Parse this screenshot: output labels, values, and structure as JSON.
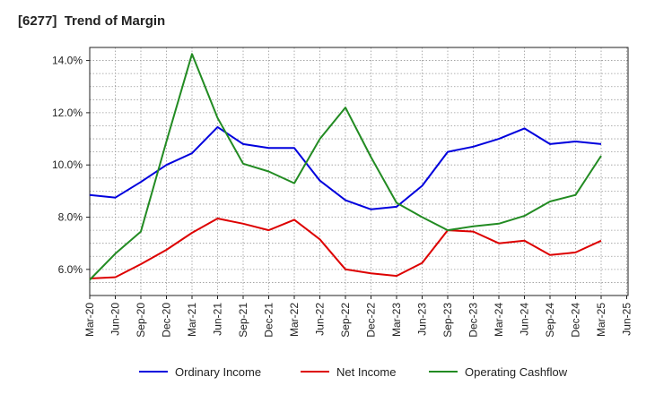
{
  "chart_data": {
    "type": "line",
    "title": "[6277]  Trend of Margin",
    "xlabel": "",
    "ylabel": "",
    "x_ticks": [
      "Mar-20",
      "Jun-20",
      "Sep-20",
      "Dec-20",
      "Mar-21",
      "Jun-21",
      "Sep-21",
      "Dec-21",
      "Mar-22",
      "Jun-22",
      "Sep-22",
      "Dec-22",
      "Mar-23",
      "Jun-23",
      "Sep-23",
      "Dec-23",
      "Mar-24",
      "Jun-24",
      "Sep-24",
      "Dec-24",
      "Mar-25",
      "Jun-25"
    ],
    "y_ticks": [
      "6.0%",
      "8.0%",
      "10.0%",
      "12.0%",
      "14.0%"
    ],
    "ylim": [
      5.0,
      14.5
    ],
    "grid": true,
    "legend_position": "bottom",
    "series": [
      {
        "name": "Ordinary Income",
        "color": "#0000dd",
        "x": [
          "Mar-20",
          "Jun-20",
          "Sep-20",
          "Dec-20",
          "Mar-21",
          "Jun-21",
          "Sep-21",
          "Dec-21",
          "Mar-22",
          "Jun-22",
          "Sep-22",
          "Dec-22",
          "Mar-23",
          "Jun-23",
          "Sep-23",
          "Dec-23",
          "Mar-24",
          "Jun-24",
          "Sep-24",
          "Dec-24",
          "Mar-25"
        ],
        "values": [
          8.85,
          8.75,
          9.35,
          10.0,
          10.45,
          11.45,
          10.8,
          10.65,
          10.65,
          9.4,
          8.65,
          8.3,
          8.4,
          9.2,
          10.5,
          10.7,
          11.0,
          11.4,
          10.8,
          10.9,
          10.8
        ]
      },
      {
        "name": "Net Income",
        "color": "#dd0000",
        "x": [
          "Mar-20",
          "Jun-20",
          "Sep-20",
          "Dec-20",
          "Mar-21",
          "Jun-21",
          "Sep-21",
          "Dec-21",
          "Mar-22",
          "Jun-22",
          "Sep-22",
          "Dec-22",
          "Mar-23",
          "Jun-23",
          "Sep-23",
          "Dec-23",
          "Mar-24",
          "Jun-24",
          "Sep-24",
          "Dec-24",
          "Mar-25"
        ],
        "values": [
          5.65,
          5.7,
          6.2,
          6.75,
          7.4,
          7.95,
          7.75,
          7.5,
          7.9,
          7.15,
          6.0,
          5.85,
          5.75,
          6.25,
          7.5,
          7.45,
          7.0,
          7.1,
          6.55,
          6.65,
          7.1
        ]
      },
      {
        "name": "Operating Cashflow",
        "color": "#228b22",
        "x": [
          "Mar-20",
          "Jun-20",
          "Sep-20",
          "Dec-20",
          "Mar-21",
          "Jun-21",
          "Sep-21",
          "Dec-21",
          "Mar-22",
          "Jun-22",
          "Sep-22",
          "Dec-22",
          "Mar-23",
          "Jun-23",
          "Sep-23",
          "Dec-23",
          "Mar-24",
          "Jun-24",
          "Sep-24",
          "Dec-24",
          "Mar-25"
        ],
        "values": [
          5.6,
          6.6,
          7.45,
          10.9,
          14.25,
          11.8,
          10.05,
          9.75,
          9.3,
          11.0,
          12.2,
          10.3,
          8.55,
          8.0,
          7.5,
          7.65,
          7.75,
          8.05,
          8.6,
          8.85,
          10.35
        ]
      }
    ]
  }
}
